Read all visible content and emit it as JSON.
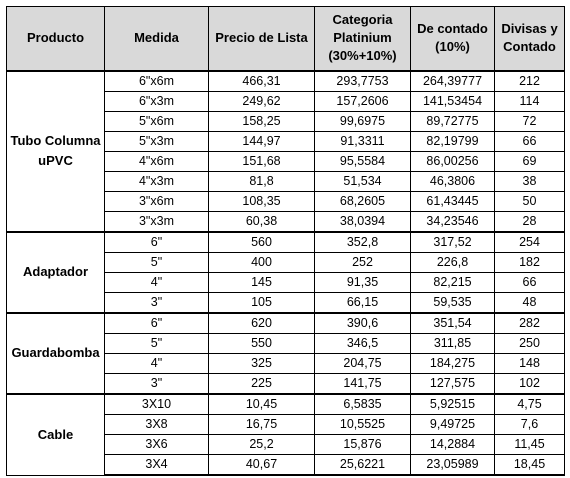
{
  "headers": {
    "producto": "Producto",
    "medida": "Medida",
    "precio": "Precio de Lista",
    "categoria_line1": "Categoria",
    "categoria_line2": "Platinium",
    "categoria_line3": "(30%+10%)",
    "contado_line1": "De contado",
    "contado_line2": "(10%)",
    "divisas_line1": "Divisas y",
    "divisas_line2": "Contado"
  },
  "groups": [
    {
      "product_line1": "Tubo Columna",
      "product_line2": "uPVC",
      "rows": [
        {
          "medida": "6\"x6m",
          "precio": "466,31",
          "categoria": "293,7753",
          "contado": "264,39777",
          "divisas": "212"
        },
        {
          "medida": "6\"x3m",
          "precio": "249,62",
          "categoria": "157,2606",
          "contado": "141,53454",
          "divisas": "114"
        },
        {
          "medida": "5\"x6m",
          "precio": "158,25",
          "categoria": "99,6975",
          "contado": "89,72775",
          "divisas": "72"
        },
        {
          "medida": "5\"x3m",
          "precio": "144,97",
          "categoria": "91,3311",
          "contado": "82,19799",
          "divisas": "66"
        },
        {
          "medida": "4\"x6m",
          "precio": "151,68",
          "categoria": "95,5584",
          "contado": "86,00256",
          "divisas": "69"
        },
        {
          "medida": "4\"x3m",
          "precio": "81,8",
          "categoria": "51,534",
          "contado": "46,3806",
          "divisas": "38"
        },
        {
          "medida": "3\"x6m",
          "precio": "108,35",
          "categoria": "68,2605",
          "contado": "61,43445",
          "divisas": "50"
        },
        {
          "medida": "3\"x3m",
          "precio": "60,38",
          "categoria": "38,0394",
          "contado": "34,23546",
          "divisas": "28"
        }
      ]
    },
    {
      "product_line1": "Adaptador",
      "product_line2": "",
      "rows": [
        {
          "medida": "6\"",
          "precio": "560",
          "categoria": "352,8",
          "contado": "317,52",
          "divisas": "254"
        },
        {
          "medida": "5\"",
          "precio": "400",
          "categoria": "252",
          "contado": "226,8",
          "divisas": "182"
        },
        {
          "medida": "4\"",
          "precio": "145",
          "categoria": "91,35",
          "contado": "82,215",
          "divisas": "66"
        },
        {
          "medida": "3\"",
          "precio": "105",
          "categoria": "66,15",
          "contado": "59,535",
          "divisas": "48"
        }
      ]
    },
    {
      "product_line1": "Guardabomba",
      "product_line2": "",
      "rows": [
        {
          "medida": "6\"",
          "precio": "620",
          "categoria": "390,6",
          "contado": "351,54",
          "divisas": "282"
        },
        {
          "medida": "5\"",
          "precio": "550",
          "categoria": "346,5",
          "contado": "311,85",
          "divisas": "250"
        },
        {
          "medida": "4\"",
          "precio": "325",
          "categoria": "204,75",
          "contado": "184,275",
          "divisas": "148"
        },
        {
          "medida": "3\"",
          "precio": "225",
          "categoria": "141,75",
          "contado": "127,575",
          "divisas": "102"
        }
      ]
    },
    {
      "product_line1": "Cable",
      "product_line2": "",
      "rows": [
        {
          "medida": "3X10",
          "precio": "10,45",
          "categoria": "6,5835",
          "contado": "5,92515",
          "divisas": "4,75"
        },
        {
          "medida": "3X8",
          "precio": "16,75",
          "categoria": "10,5525",
          "contado": "9,49725",
          "divisas": "7,6"
        },
        {
          "medida": "3X6",
          "precio": "25,2",
          "categoria": "15,876",
          "contado": "14,2884",
          "divisas": "11,45"
        },
        {
          "medida": "3X4",
          "precio": "40,67",
          "categoria": "25,6221",
          "contado": "23,05989",
          "divisas": "18,45"
        }
      ]
    }
  ]
}
